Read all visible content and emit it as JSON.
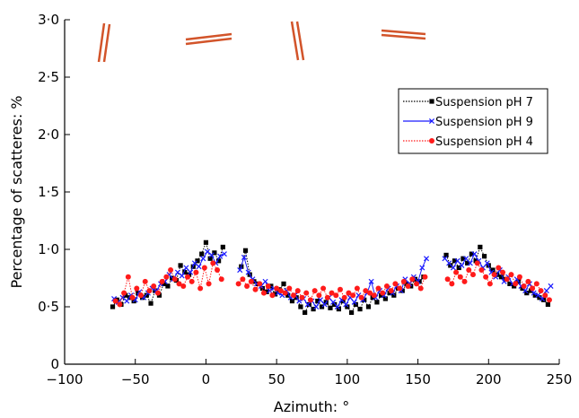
{
  "chart_data": {
    "type": "scatter",
    "title": "",
    "xlabel": "Azimuth: °",
    "ylabel": "Percentage of scatteres: %",
    "xlim": [
      -100,
      250
    ],
    "ylim": [
      0,
      3.0
    ],
    "xticks": [
      -100,
      -50,
      0,
      50,
      100,
      150,
      200,
      250
    ],
    "yticks": [
      0,
      0.5,
      1.0,
      1.5,
      2.0,
      2.5,
      3.0
    ],
    "xtick_labels": [
      "−100",
      "−50",
      "0",
      "50",
      "100",
      "150",
      "200",
      "250"
    ],
    "ytick_labels": [
      "0",
      "0·5",
      "1·0",
      "1·5",
      "2·0",
      "2·5",
      "3·0"
    ],
    "grid": false,
    "legend_position": "top-right",
    "series": [
      {
        "name": "Suspension pH 7",
        "color": "#000000",
        "marker": "square",
        "line": "dotted",
        "points": [
          [
            -66,
            0.5
          ],
          [
            -63,
            0.56
          ],
          [
            -60,
            0.52
          ],
          [
            -57,
            0.6
          ],
          [
            -54,
            0.58
          ],
          [
            -51,
            0.55
          ],
          [
            -48,
            0.62
          ],
          [
            -45,
            0.58
          ],
          [
            -42,
            0.6
          ],
          [
            -39,
            0.53
          ],
          [
            -36,
            0.64
          ],
          [
            -33,
            0.6
          ],
          [
            -30,
            0.7
          ],
          [
            -27,
            0.68
          ],
          [
            -24,
            0.75
          ],
          [
            -21,
            0.73
          ],
          [
            -18,
            0.86
          ],
          [
            -15,
            0.8
          ],
          [
            -12,
            0.78
          ],
          [
            -9,
            0.85
          ],
          [
            -6,
            0.9
          ],
          [
            -3,
            0.96
          ],
          [
            0,
            1.06
          ],
          [
            3,
            0.92
          ],
          [
            6,
            0.97
          ],
          [
            9,
            0.9
          ],
          [
            12,
            1.02
          ],
          [
            25,
            0.85
          ],
          [
            28,
            0.99
          ],
          [
            31,
            0.78
          ],
          [
            34,
            0.72
          ],
          [
            37,
            0.7
          ],
          [
            40,
            0.66
          ],
          [
            43,
            0.63
          ],
          [
            46,
            0.68
          ],
          [
            49,
            0.61
          ],
          [
            52,
            0.65
          ],
          [
            55,
            0.7
          ],
          [
            58,
            0.6
          ],
          [
            61,
            0.55
          ],
          [
            64,
            0.58
          ],
          [
            67,
            0.5
          ],
          [
            70,
            0.45
          ],
          [
            73,
            0.52
          ],
          [
            76,
            0.48
          ],
          [
            79,
            0.55
          ],
          [
            82,
            0.5
          ],
          [
            85,
            0.54
          ],
          [
            88,
            0.49
          ],
          [
            91,
            0.52
          ],
          [
            94,
            0.48
          ],
          [
            97,
            0.55
          ],
          [
            100,
            0.5
          ],
          [
            103,
            0.45
          ],
          [
            106,
            0.52
          ],
          [
            109,
            0.48
          ],
          [
            112,
            0.56
          ],
          [
            115,
            0.5
          ],
          [
            118,
            0.58
          ],
          [
            121,
            0.54
          ],
          [
            124,
            0.6
          ],
          [
            127,
            0.57
          ],
          [
            130,
            0.62
          ],
          [
            133,
            0.6
          ],
          [
            136,
            0.66
          ],
          [
            139,
            0.64
          ],
          [
            142,
            0.7
          ],
          [
            145,
            0.68
          ],
          [
            148,
            0.74
          ],
          [
            151,
            0.72
          ],
          [
            154,
            0.76
          ],
          [
            170,
            0.95
          ],
          [
            173,
            0.86
          ],
          [
            176,
            0.9
          ],
          [
            179,
            0.84
          ],
          [
            182,
            0.92
          ],
          [
            185,
            0.88
          ],
          [
            188,
            0.96
          ],
          [
            191,
            0.9
          ],
          [
            194,
            1.02
          ],
          [
            197,
            0.94
          ],
          [
            200,
            0.86
          ],
          [
            203,
            0.82
          ],
          [
            206,
            0.78
          ],
          [
            209,
            0.76
          ],
          [
            212,
            0.74
          ],
          [
            215,
            0.7
          ],
          [
            218,
            0.68
          ],
          [
            221,
            0.72
          ],
          [
            224,
            0.66
          ],
          [
            227,
            0.62
          ],
          [
            230,
            0.64
          ],
          [
            233,
            0.6
          ],
          [
            236,
            0.58
          ],
          [
            239,
            0.56
          ],
          [
            242,
            0.52
          ]
        ]
      },
      {
        "name": "Suspension pH 9",
        "color": "#1a1aff",
        "marker": "x",
        "line": "solid",
        "points": [
          [
            -65,
            0.57
          ],
          [
            -62,
            0.54
          ],
          [
            -59,
            0.58
          ],
          [
            -56,
            0.55
          ],
          [
            -53,
            0.6
          ],
          [
            -50,
            0.56
          ],
          [
            -47,
            0.63
          ],
          [
            -44,
            0.58
          ],
          [
            -41,
            0.62
          ],
          [
            -38,
            0.66
          ],
          [
            -35,
            0.64
          ],
          [
            -32,
            0.7
          ],
          [
            -29,
            0.72
          ],
          [
            -26,
            0.78
          ],
          [
            -23,
            0.74
          ],
          [
            -20,
            0.8
          ],
          [
            -17,
            0.77
          ],
          [
            -14,
            0.84
          ],
          [
            -11,
            0.8
          ],
          [
            -8,
            0.88
          ],
          [
            -5,
            0.85
          ],
          [
            -2,
            0.92
          ],
          [
            1,
            0.98
          ],
          [
            4,
            0.95
          ],
          [
            7,
            0.88
          ],
          [
            10,
            0.94
          ],
          [
            13,
            0.96
          ],
          [
            24,
            0.82
          ],
          [
            27,
            0.93
          ],
          [
            30,
            0.8
          ],
          [
            33,
            0.74
          ],
          [
            36,
            0.7
          ],
          [
            39,
            0.68
          ],
          [
            42,
            0.72
          ],
          [
            45,
            0.64
          ],
          [
            48,
            0.66
          ],
          [
            51,
            0.62
          ],
          [
            54,
            0.6
          ],
          [
            57,
            0.64
          ],
          [
            60,
            0.58
          ],
          [
            63,
            0.6
          ],
          [
            66,
            0.55
          ],
          [
            69,
            0.57
          ],
          [
            72,
            0.52
          ],
          [
            75,
            0.55
          ],
          [
            78,
            0.5
          ],
          [
            81,
            0.56
          ],
          [
            84,
            0.52
          ],
          [
            87,
            0.58
          ],
          [
            90,
            0.54
          ],
          [
            93,
            0.5
          ],
          [
            96,
            0.56
          ],
          [
            99,
            0.52
          ],
          [
            102,
            0.58
          ],
          [
            105,
            0.54
          ],
          [
            108,
            0.6
          ],
          [
            111,
            0.56
          ],
          [
            114,
            0.62
          ],
          [
            117,
            0.72
          ],
          [
            120,
            0.58
          ],
          [
            123,
            0.64
          ],
          [
            126,
            0.6
          ],
          [
            129,
            0.66
          ],
          [
            132,
            0.62
          ],
          [
            135,
            0.68
          ],
          [
            138,
            0.64
          ],
          [
            141,
            0.74
          ],
          [
            144,
            0.7
          ],
          [
            147,
            0.76
          ],
          [
            150,
            0.72
          ],
          [
            153,
            0.84
          ],
          [
            156,
            0.92
          ],
          [
            169,
            0.92
          ],
          [
            172,
            0.88
          ],
          [
            175,
            0.84
          ],
          [
            178,
            0.9
          ],
          [
            181,
            0.86
          ],
          [
            184,
            0.92
          ],
          [
            187,
            0.88
          ],
          [
            190,
            0.96
          ],
          [
            193,
            0.9
          ],
          [
            196,
            0.84
          ],
          [
            199,
            0.88
          ],
          [
            202,
            0.8
          ],
          [
            205,
            0.76
          ],
          [
            208,
            0.82
          ],
          [
            211,
            0.72
          ],
          [
            214,
            0.76
          ],
          [
            217,
            0.7
          ],
          [
            220,
            0.74
          ],
          [
            223,
            0.68
          ],
          [
            226,
            0.64
          ],
          [
            229,
            0.7
          ],
          [
            232,
            0.62
          ],
          [
            235,
            0.6
          ],
          [
            238,
            0.57
          ],
          [
            241,
            0.64
          ],
          [
            244,
            0.68
          ]
        ]
      },
      {
        "name": "Suspension pH 4",
        "color": "#ff1a1a",
        "marker": "circle",
        "line": "dotted",
        "points": [
          [
            -64,
            0.55
          ],
          [
            -61,
            0.52
          ],
          [
            -58,
            0.62
          ],
          [
            -55,
            0.76
          ],
          [
            -52,
            0.58
          ],
          [
            -49,
            0.66
          ],
          [
            -46,
            0.6
          ],
          [
            -43,
            0.72
          ],
          [
            -40,
            0.64
          ],
          [
            -37,
            0.68
          ],
          [
            -34,
            0.62
          ],
          [
            -31,
            0.72
          ],
          [
            -28,
            0.76
          ],
          [
            -25,
            0.82
          ],
          [
            -22,
            0.74
          ],
          [
            -19,
            0.7
          ],
          [
            -16,
            0.68
          ],
          [
            -13,
            0.76
          ],
          [
            -10,
            0.72
          ],
          [
            -7,
            0.8
          ],
          [
            -4,
            0.66
          ],
          [
            -1,
            0.84
          ],
          [
            2,
            0.7
          ],
          [
            5,
            0.88
          ],
          [
            8,
            0.82
          ],
          [
            11,
            0.74
          ],
          [
            23,
            0.7
          ],
          [
            26,
            0.74
          ],
          [
            29,
            0.68
          ],
          [
            32,
            0.72
          ],
          [
            35,
            0.65
          ],
          [
            38,
            0.7
          ],
          [
            41,
            0.62
          ],
          [
            44,
            0.68
          ],
          [
            47,
            0.6
          ],
          [
            50,
            0.66
          ],
          [
            53,
            0.64
          ],
          [
            56,
            0.62
          ],
          [
            59,
            0.66
          ],
          [
            62,
            0.6
          ],
          [
            65,
            0.64
          ],
          [
            68,
            0.58
          ],
          [
            71,
            0.62
          ],
          [
            74,
            0.56
          ],
          [
            77,
            0.64
          ],
          [
            80,
            0.6
          ],
          [
            83,
            0.66
          ],
          [
            86,
            0.58
          ],
          [
            89,
            0.62
          ],
          [
            92,
            0.6
          ],
          [
            95,
            0.65
          ],
          [
            98,
            0.58
          ],
          [
            101,
            0.62
          ],
          [
            104,
            0.6
          ],
          [
            107,
            0.66
          ],
          [
            110,
            0.58
          ],
          [
            113,
            0.64
          ],
          [
            116,
            0.62
          ],
          [
            119,
            0.6
          ],
          [
            122,
            0.66
          ],
          [
            125,
            0.62
          ],
          [
            128,
            0.68
          ],
          [
            131,
            0.64
          ],
          [
            134,
            0.7
          ],
          [
            137,
            0.66
          ],
          [
            140,
            0.72
          ],
          [
            143,
            0.68
          ],
          [
            146,
            0.74
          ],
          [
            149,
            0.7
          ],
          [
            152,
            0.66
          ],
          [
            155,
            0.76
          ],
          [
            171,
            0.74
          ],
          [
            174,
            0.7
          ],
          [
            177,
            0.8
          ],
          [
            180,
            0.76
          ],
          [
            183,
            0.72
          ],
          [
            186,
            0.82
          ],
          [
            189,
            0.78
          ],
          [
            192,
            0.88
          ],
          [
            195,
            0.82
          ],
          [
            198,
            0.76
          ],
          [
            201,
            0.7
          ],
          [
            204,
            0.78
          ],
          [
            207,
            0.84
          ],
          [
            210,
            0.8
          ],
          [
            213,
            0.74
          ],
          [
            216,
            0.78
          ],
          [
            219,
            0.7
          ],
          [
            222,
            0.76
          ],
          [
            225,
            0.68
          ],
          [
            228,
            0.72
          ],
          [
            231,
            0.66
          ],
          [
            234,
            0.7
          ],
          [
            237,
            0.64
          ],
          [
            240,
            0.6
          ],
          [
            243,
            0.56
          ]
        ]
      }
    ]
  }
}
